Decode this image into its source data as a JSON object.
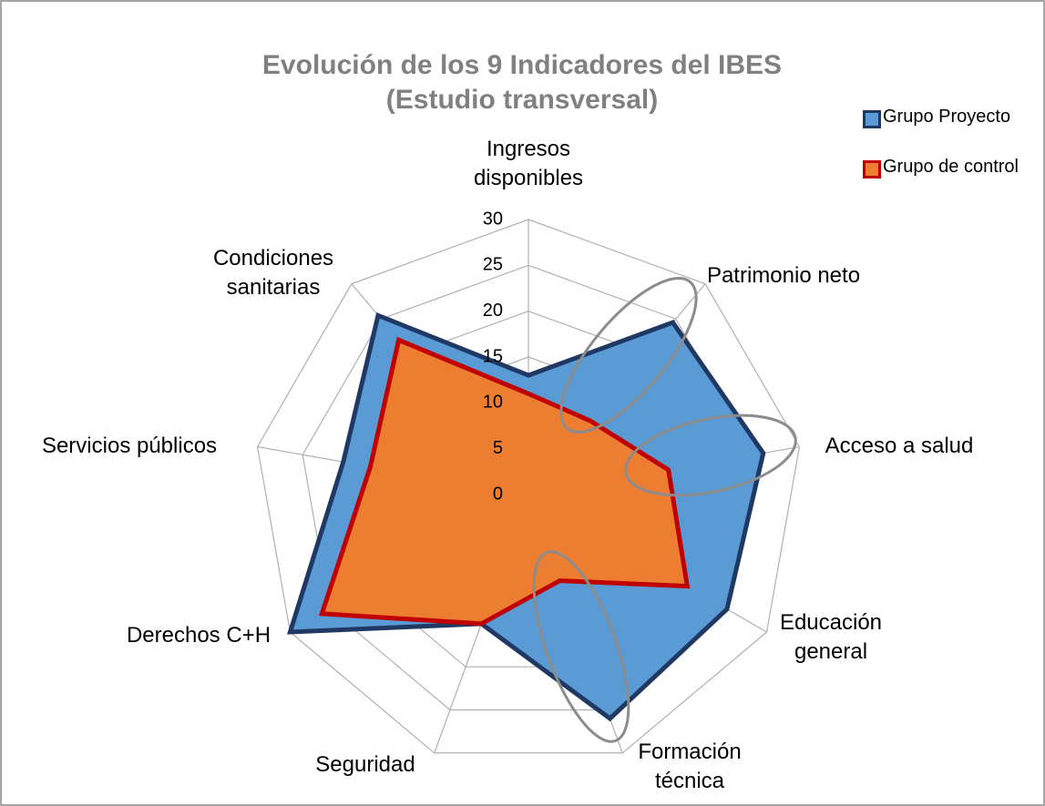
{
  "chart_data": {
    "type": "radar",
    "title": [
      "Evolución de los 9 Indicadores del IBES",
      "(Estudio transversal)"
    ],
    "categories": [
      "Ingresos disponibles",
      "Patrimonio neto",
      "Acceso a salud",
      "Educación general",
      "Formación técnica",
      "Seguridad",
      "Derechos C+H",
      "Servicios públicos",
      "Condiciones sanitarias"
    ],
    "series": [
      {
        "name": "Grupo Proyecto",
        "color": "#5b9bd5",
        "values": [
          13,
          24.5,
          26,
          25,
          26,
          15,
          30,
          20.5,
          25.5
        ]
      },
      {
        "name": "Grupo de control",
        "color": "#ed7d31",
        "values": [
          11,
          10.5,
          15.5,
          20,
          10,
          15,
          26,
          17.5,
          22
        ]
      }
    ],
    "ylim": [
      0,
      30
    ],
    "yticks": [
      0,
      5,
      10,
      15,
      20,
      25,
      30
    ],
    "grid": true,
    "legend": "top-right"
  }
}
